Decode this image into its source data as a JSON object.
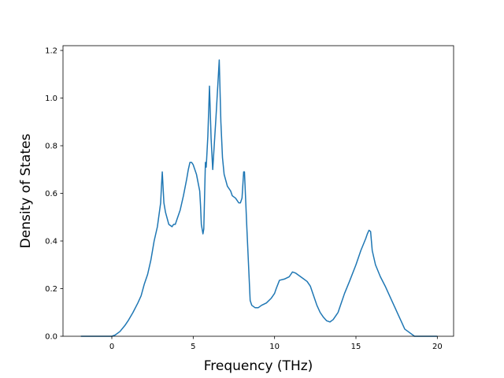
{
  "chart_data": {
    "type": "line",
    "title": "",
    "xlabel": "Frequency (THz)",
    "ylabel": "Density of States",
    "xlim": [
      -3,
      21
    ],
    "ylim": [
      0,
      1.22
    ],
    "xticks": [
      0,
      5,
      10,
      15,
      20
    ],
    "xtick_labels": [
      "0",
      "5",
      "10",
      "15",
      "20"
    ],
    "yticks": [
      0.0,
      0.2,
      0.4,
      0.6,
      0.8,
      1.0,
      1.2
    ],
    "ytick_labels": [
      "0.0",
      "0.2",
      "0.4",
      "0.6",
      "0.8",
      "1.0",
      "1.2"
    ],
    "grid": false,
    "series": [
      {
        "color": "#1f77b4",
        "x": [
          -1.9,
          -1.0,
          0.0,
          0.2,
          0.5,
          0.8,
          1.0,
          1.3,
          1.6,
          1.8,
          2.0,
          2.2,
          2.4,
          2.6,
          2.8,
          2.9,
          3.0,
          3.05,
          3.1,
          3.2,
          3.3,
          3.5,
          3.7,
          3.8,
          3.9,
          4.0,
          4.2,
          4.4,
          4.6,
          4.7,
          4.8,
          4.9,
          5.0,
          5.2,
          5.4,
          5.45,
          5.5,
          5.6,
          5.65,
          5.75,
          5.8,
          5.9,
          6.0,
          6.1,
          6.2,
          6.4,
          6.55,
          6.6,
          6.7,
          6.8,
          6.9,
          7.1,
          7.3,
          7.4,
          7.6,
          7.8,
          7.9,
          8.0,
          8.1,
          8.15,
          8.3,
          8.4,
          8.5,
          8.6,
          8.8,
          9.0,
          9.2,
          9.5,
          9.8,
          10.0,
          10.1,
          10.3,
          10.6,
          10.9,
          11.0,
          11.1,
          11.3,
          11.6,
          11.8,
          12.0,
          12.2,
          12.4,
          12.6,
          12.8,
          13.0,
          13.2,
          13.4,
          13.6,
          13.8,
          13.9,
          14.1,
          14.3,
          14.6,
          15.0,
          15.3,
          15.6,
          15.7,
          15.8,
          15.9,
          16.0,
          16.2,
          16.5,
          16.8,
          17.0,
          17.2,
          17.4,
          17.6,
          17.8,
          18.0,
          18.2,
          18.6,
          19.0,
          20.0
        ],
        "y": [
          0.0,
          0.0,
          0.0,
          0.005,
          0.02,
          0.045,
          0.065,
          0.1,
          0.14,
          0.17,
          0.22,
          0.26,
          0.32,
          0.4,
          0.46,
          0.51,
          0.56,
          0.63,
          0.69,
          0.56,
          0.52,
          0.47,
          0.46,
          0.47,
          0.47,
          0.49,
          0.53,
          0.59,
          0.66,
          0.7,
          0.73,
          0.73,
          0.72,
          0.68,
          0.61,
          0.55,
          0.47,
          0.43,
          0.45,
          0.73,
          0.71,
          0.84,
          1.05,
          0.83,
          0.7,
          0.92,
          1.1,
          1.16,
          0.9,
          0.75,
          0.68,
          0.63,
          0.61,
          0.59,
          0.58,
          0.56,
          0.56,
          0.58,
          0.69,
          0.69,
          0.45,
          0.3,
          0.15,
          0.13,
          0.12,
          0.12,
          0.13,
          0.14,
          0.16,
          0.18,
          0.2,
          0.235,
          0.24,
          0.25,
          0.26,
          0.27,
          0.265,
          0.25,
          0.24,
          0.23,
          0.21,
          0.17,
          0.13,
          0.1,
          0.08,
          0.065,
          0.06,
          0.07,
          0.09,
          0.1,
          0.14,
          0.18,
          0.23,
          0.3,
          0.36,
          0.41,
          0.43,
          0.445,
          0.44,
          0.36,
          0.3,
          0.25,
          0.21,
          0.18,
          0.15,
          0.12,
          0.09,
          0.06,
          0.03,
          0.02,
          0.0,
          0.0,
          0.0
        ]
      }
    ]
  }
}
